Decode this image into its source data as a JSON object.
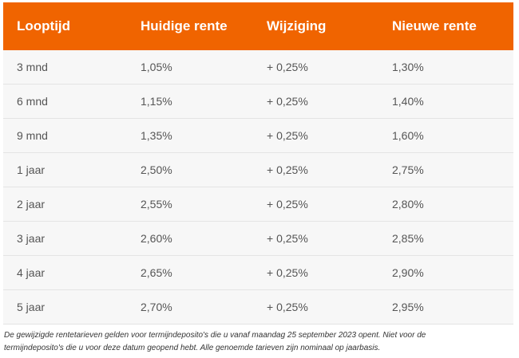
{
  "table": {
    "headers": [
      "Looptijd",
      "Huidige rente",
      "Wijziging",
      "Nieuwe rente"
    ],
    "rows": [
      [
        "3 mnd",
        "1,05%",
        "+ 0,25%",
        "1,30%"
      ],
      [
        "6 mnd",
        "1,15%",
        "+ 0,25%",
        "1,40%"
      ],
      [
        "9 mnd",
        "1,35%",
        "+ 0,25%",
        "1,60%"
      ],
      [
        "1 jaar",
        "2,50%",
        "+ 0,25%",
        "2,75%"
      ],
      [
        "2 jaar",
        "2,55%",
        "+ 0,25%",
        "2,80%"
      ],
      [
        "3 jaar",
        "2,60%",
        "+ 0,25%",
        "2,85%"
      ],
      [
        "4 jaar",
        "2,65%",
        "+ 0,25%",
        "2,90%"
      ],
      [
        "5 jaar",
        "2,70%",
        "+ 0,25%",
        "2,95%"
      ]
    ]
  },
  "footnote": {
    "line1": "De gewijzigde rentetarieven gelden voor termijndeposito's die u vanaf maandag 25 september 2023 opent. Niet voor de",
    "line2": "termijndeposito's die u voor deze datum geopend hebt. Alle genoemde tarieven zijn nominaal op jaarbasis."
  },
  "colors": {
    "header_background": "#f06400",
    "header_text": "#ffffff",
    "row_background": "#f7f7f7",
    "row_divider": "#e4e4e4"
  }
}
